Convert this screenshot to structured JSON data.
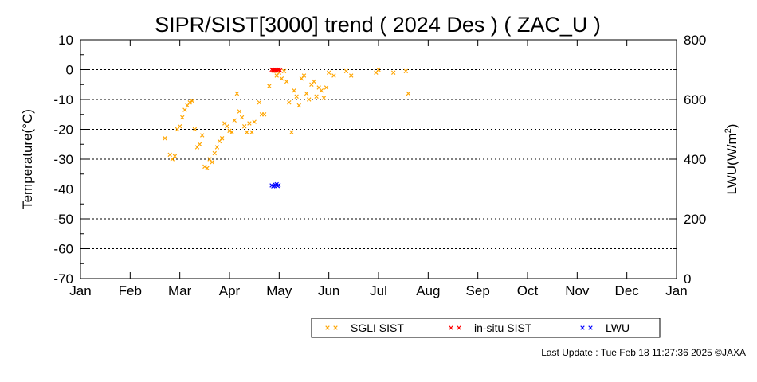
{
  "chart_data": {
    "type": "scatter",
    "title": "SIPR/SIST[3000] trend ( 2024 Des ) ( ZAC_U )",
    "xlabel": "",
    "ylabel": "Temperature(°C)",
    "y2label_base": "LWU(W/m",
    "y2label_sup": "2",
    "y2label_tail": ")",
    "x_ticks": [
      "Jan",
      "Feb",
      "Mar",
      "Apr",
      "May",
      "Jun",
      "Jul",
      "Aug",
      "Sep",
      "Oct",
      "Nov",
      "Dec",
      "Jan"
    ],
    "xlim_months": [
      0,
      12
    ],
    "ylim": [
      -70,
      10
    ],
    "y_ticks": [
      10,
      0,
      -10,
      -20,
      -30,
      -40,
      -50,
      -60,
      -70
    ],
    "y2lim": [
      0,
      800
    ],
    "y2_ticks": [
      800,
      600,
      400,
      200,
      0
    ],
    "grid": "horizontal-dotted",
    "legend_position": "bottom-right",
    "series": [
      {
        "name": "SGLI SIST",
        "color": "#ffa500",
        "axis": "left",
        "points": [
          [
            1.7,
            -23
          ],
          [
            1.8,
            -28.5
          ],
          [
            1.85,
            -30
          ],
          [
            1.9,
            -29
          ],
          [
            1.95,
            -20
          ],
          [
            2.0,
            -19
          ],
          [
            2.05,
            -16
          ],
          [
            2.1,
            -13.5
          ],
          [
            2.15,
            -12
          ],
          [
            2.2,
            -11
          ],
          [
            2.25,
            -10.5
          ],
          [
            2.3,
            -20
          ],
          [
            2.35,
            -26
          ],
          [
            2.4,
            -25
          ],
          [
            2.45,
            -22
          ],
          [
            2.5,
            -32.5
          ],
          [
            2.55,
            -33
          ],
          [
            2.6,
            -30
          ],
          [
            2.65,
            -31
          ],
          [
            2.7,
            -28
          ],
          [
            2.75,
            -26
          ],
          [
            2.8,
            -24
          ],
          [
            2.85,
            -23
          ],
          [
            2.9,
            -18
          ],
          [
            2.95,
            -19
          ],
          [
            3.0,
            -20.5
          ],
          [
            3.05,
            -21
          ],
          [
            3.1,
            -17
          ],
          [
            3.15,
            -8
          ],
          [
            3.2,
            -14
          ],
          [
            3.25,
            -16
          ],
          [
            3.3,
            -19
          ],
          [
            3.35,
            -21
          ],
          [
            3.4,
            -18
          ],
          [
            3.45,
            -21
          ],
          [
            3.5,
            -17.5
          ],
          [
            3.6,
            -11
          ],
          [
            3.65,
            -15
          ],
          [
            3.7,
            -15
          ],
          [
            3.8,
            -5.5
          ],
          [
            3.9,
            -0.5
          ],
          [
            3.95,
            -2
          ],
          [
            4.0,
            -1
          ],
          [
            4.05,
            -3
          ],
          [
            4.1,
            -0.5
          ],
          [
            4.15,
            -4
          ],
          [
            4.2,
            -11
          ],
          [
            4.25,
            -21
          ],
          [
            4.3,
            -7
          ],
          [
            4.35,
            -9
          ],
          [
            4.4,
            -12
          ],
          [
            4.45,
            -3
          ],
          [
            4.5,
            -2
          ],
          [
            4.55,
            -8
          ],
          [
            4.6,
            -10
          ],
          [
            4.65,
            -5
          ],
          [
            4.7,
            -4
          ],
          [
            4.75,
            -9
          ],
          [
            4.8,
            -6
          ],
          [
            4.85,
            -7
          ],
          [
            4.9,
            -9.5
          ],
          [
            4.95,
            -6
          ],
          [
            5.0,
            -1
          ],
          [
            5.1,
            -2
          ],
          [
            5.35,
            -0.5
          ],
          [
            5.45,
            -2
          ],
          [
            5.95,
            -1
          ],
          [
            6.0,
            0
          ],
          [
            6.3,
            -1
          ],
          [
            6.55,
            -0.5
          ],
          [
            6.6,
            -8
          ]
        ]
      },
      {
        "name": "in-situ SIST",
        "color": "#ff0000",
        "axis": "left",
        "points": [
          [
            3.85,
            0
          ],
          [
            3.88,
            -0.3
          ],
          [
            3.9,
            0
          ],
          [
            3.92,
            0
          ],
          [
            3.95,
            -0.2
          ],
          [
            3.98,
            0
          ],
          [
            4.0,
            0
          ],
          [
            4.02,
            -0.3
          ],
          [
            3.87,
            -0.2
          ],
          [
            3.93,
            -0.4
          ]
        ]
      },
      {
        "name": "LWU",
        "color": "#0000ff",
        "axis": "right",
        "points": [
          [
            3.85,
            312
          ],
          [
            3.88,
            309
          ],
          [
            3.9,
            311
          ],
          [
            3.92,
            314
          ],
          [
            3.95,
            316
          ],
          [
            3.97,
            310
          ],
          [
            3.99,
            313
          ]
        ]
      }
    ]
  },
  "footer": {
    "last_update": "Last Update : Tue Feb 18 11:27:36 2025  ©JAXA"
  }
}
